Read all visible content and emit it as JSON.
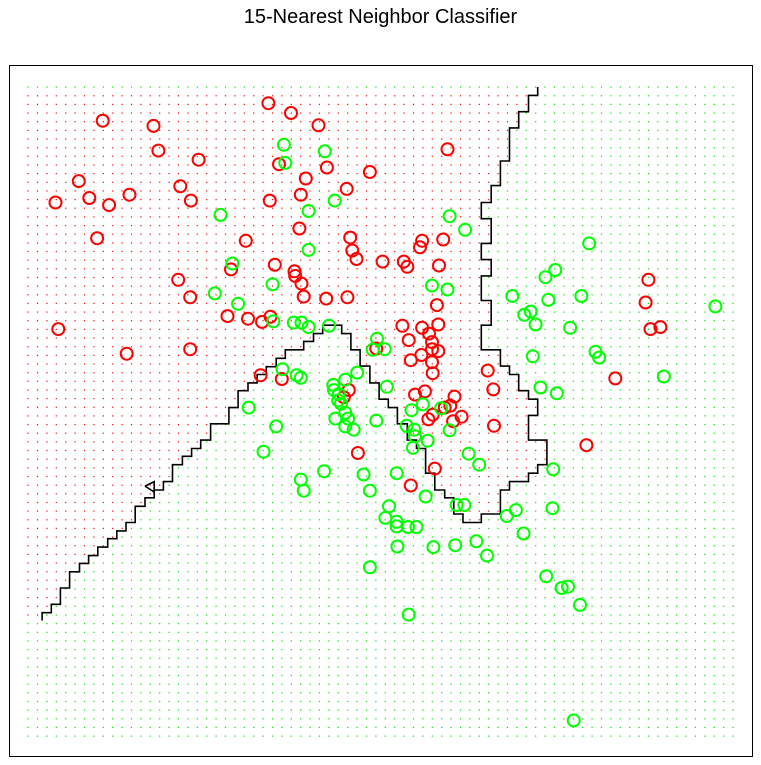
{
  "title": "15-Nearest Neighbor Classifier",
  "colors": {
    "class_red": "#ff0000",
    "class_green": "#00ff00",
    "grid_red": "#ff0000",
    "grid_green": "#00dd00",
    "boundary": "#000000"
  },
  "chart_data": {
    "type": "scatter",
    "title": "15-Nearest Neighbor Classifier",
    "xlabel": "",
    "ylabel": "",
    "xlim": [
      0,
      100
    ],
    "ylim": [
      0,
      100
    ],
    "grid_points": "on",
    "legend": "none",
    "series": [
      {
        "color": "#ff0000",
        "points": [
          [
            34.1,
            97.5
          ],
          [
            37.3,
            96
          ],
          [
            10.6,
            94.8
          ],
          [
            17.8,
            94
          ],
          [
            41.2,
            94.1
          ],
          [
            18.5,
            90.2
          ],
          [
            24.2,
            88.8
          ],
          [
            59.5,
            90.4
          ],
          [
            35.6,
            88.1
          ],
          [
            42.4,
            87.6
          ],
          [
            48.5,
            86.9
          ],
          [
            7.2,
            85.5
          ],
          [
            21.6,
            84.7
          ],
          [
            39.4,
            85.9
          ],
          [
            8.7,
            82.9
          ],
          [
            14.4,
            83.4
          ],
          [
            38.7,
            83.4
          ],
          [
            45.2,
            84.3
          ],
          [
            23.1,
            82.5
          ],
          [
            34.3,
            82.5
          ],
          [
            3.9,
            82.2
          ],
          [
            11.5,
            81.8
          ],
          [
            38.5,
            78.2
          ],
          [
            9.8,
            76.7
          ],
          [
            30.9,
            76.3
          ],
          [
            45.7,
            76.8
          ],
          [
            55.9,
            76.3
          ],
          [
            58.9,
            76.5
          ],
          [
            46,
            74.8
          ],
          [
            55.6,
            75.3
          ],
          [
            46.6,
            73.5
          ],
          [
            50.3,
            73.1
          ],
          [
            53.3,
            73.1
          ],
          [
            35,
            72.6
          ],
          [
            53.8,
            72.3
          ],
          [
            28.8,
            71.9
          ],
          [
            37.8,
            71.6
          ],
          [
            58.3,
            72.5
          ],
          [
            37.9,
            70.9
          ],
          [
            21.3,
            70.3
          ],
          [
            38.8,
            69.7
          ],
          [
            88,
            70.3
          ],
          [
            39.1,
            67.7
          ],
          [
            23,
            67.6
          ],
          [
            42.3,
            67.4
          ],
          [
            45.3,
            67.6
          ],
          [
            87.6,
            66.8
          ],
          [
            58,
            66.4
          ],
          [
            28.3,
            64.7
          ],
          [
            31.2,
            64.3
          ],
          [
            34.4,
            64.6
          ],
          [
            33.2,
            63.8
          ],
          [
            4.3,
            62.7
          ],
          [
            53.1,
            63.2
          ],
          [
            55.9,
            62.9
          ],
          [
            58.2,
            63.4
          ],
          [
            56.9,
            62
          ],
          [
            89.7,
            63
          ],
          [
            88.3,
            62.7
          ],
          [
            54,
            61
          ],
          [
            57.3,
            60.7
          ],
          [
            57.3,
            59.6
          ],
          [
            23,
            59.6
          ],
          [
            58.2,
            59.3
          ],
          [
            49.4,
            59.7
          ],
          [
            14,
            58.9
          ],
          [
            55.8,
            58.7
          ],
          [
            54.3,
            57.9
          ],
          [
            57.3,
            57.6
          ],
          [
            57.4,
            55.9
          ],
          [
            65.2,
            56.3
          ],
          [
            83.3,
            55.1
          ],
          [
            33,
            55.6
          ],
          [
            36,
            55
          ],
          [
            45.5,
            53.3
          ],
          [
            56.3,
            53.1
          ],
          [
            54.9,
            52.6
          ],
          [
            66,
            53.4
          ],
          [
            44.8,
            52.2
          ],
          [
            60.5,
            52.3
          ],
          [
            59.9,
            50.9
          ],
          [
            59.1,
            50.6
          ],
          [
            57.4,
            49.5
          ],
          [
            61.5,
            49.2
          ],
          [
            56.8,
            48.8
          ],
          [
            60.3,
            48.5
          ],
          [
            66.1,
            47.8
          ],
          [
            79.2,
            44.8
          ],
          [
            46.8,
            43.6
          ],
          [
            57.7,
            41.2
          ],
          [
            54.3,
            38.6
          ]
        ]
      },
      {
        "color": "#00ff00",
        "points": [
          [
            36.3,
            91.1
          ],
          [
            42.1,
            90.1
          ],
          [
            36.5,
            88.3
          ],
          [
            43.5,
            82.5
          ],
          [
            39.8,
            80.9
          ],
          [
            27.3,
            80.3
          ],
          [
            59.8,
            80.1
          ],
          [
            62,
            78
          ],
          [
            79.6,
            75.9
          ],
          [
            39.8,
            74.9
          ],
          [
            29,
            72.8
          ],
          [
            74.8,
            71.8
          ],
          [
            73.4,
            70.7
          ],
          [
            34.7,
            69.6
          ],
          [
            57.3,
            69.4
          ],
          [
            59.5,
            68.8
          ],
          [
            26.5,
            68.2
          ],
          [
            68.7,
            67.8
          ],
          [
            78.5,
            67.8
          ],
          [
            73.8,
            67.2
          ],
          [
            29.8,
            66.6
          ],
          [
            97.5,
            66.2
          ],
          [
            71.3,
            65.4
          ],
          [
            70.4,
            64.9
          ],
          [
            34.8,
            63.9
          ],
          [
            37.7,
            63.7
          ],
          [
            38.8,
            63.7
          ],
          [
            72,
            63.4
          ],
          [
            39.8,
            63
          ],
          [
            42.7,
            63.2
          ],
          [
            76.9,
            62.9
          ],
          [
            49.5,
            61.2
          ],
          [
            50.6,
            59.6
          ],
          [
            48.9,
            59.5
          ],
          [
            80.5,
            59.2
          ],
          [
            81,
            58.3
          ],
          [
            71.6,
            58.5
          ],
          [
            36.1,
            56.5
          ],
          [
            38.1,
            55.6
          ],
          [
            38.7,
            55.2
          ],
          [
            46.7,
            56
          ],
          [
            90.2,
            55.4
          ],
          [
            45,
            54.9
          ],
          [
            43.3,
            54.1
          ],
          [
            50.9,
            53.8
          ],
          [
            43.4,
            53.3
          ],
          [
            44.1,
            52.7
          ],
          [
            72.7,
            53.7
          ],
          [
            75,
            52.8
          ],
          [
            44,
            51.7
          ],
          [
            44.4,
            51.2
          ],
          [
            56,
            51.1
          ],
          [
            31.3,
            50.6
          ],
          [
            58.6,
            50.5
          ],
          [
            54.4,
            50.2
          ],
          [
            45,
            49.8
          ],
          [
            43.6,
            48.9
          ],
          [
            45.4,
            48.9
          ],
          [
            49.4,
            48.6
          ],
          [
            35.2,
            47.7
          ],
          [
            45,
            47.7
          ],
          [
            53.7,
            47.8
          ],
          [
            46.2,
            47.2
          ],
          [
            54.8,
            47.2
          ],
          [
            59.8,
            47.1
          ],
          [
            54.9,
            46.2
          ],
          [
            56.7,
            45.5
          ],
          [
            54.6,
            44.4
          ],
          [
            33.4,
            43.8
          ],
          [
            62.5,
            43.5
          ],
          [
            64,
            41.8
          ],
          [
            74.5,
            41.1
          ],
          [
            42,
            40.8
          ],
          [
            52.3,
            40.5
          ],
          [
            47.6,
            40.3
          ],
          [
            38.7,
            39.5
          ],
          [
            39.1,
            37.8
          ],
          [
            48.5,
            37.8
          ],
          [
            56.4,
            36.9
          ],
          [
            51.2,
            35.4
          ],
          [
            50.7,
            33.6
          ],
          [
            60.8,
            35.6
          ],
          [
            61.9,
            35.6
          ],
          [
            69.2,
            34.8
          ],
          [
            74.4,
            35.1
          ],
          [
            67.9,
            33.9
          ],
          [
            52.3,
            33
          ],
          [
            52.3,
            32.3
          ],
          [
            53.9,
            32.2
          ],
          [
            55.1,
            32.2
          ],
          [
            70.3,
            31.2
          ],
          [
            63.6,
            30
          ],
          [
            60.6,
            29.4
          ],
          [
            52.4,
            29.2
          ],
          [
            57.5,
            29.1
          ],
          [
            65.1,
            27.8
          ],
          [
            48.5,
            26
          ],
          [
            73.5,
            24.6
          ],
          [
            76.6,
            23
          ],
          [
            75.7,
            22.8
          ],
          [
            78.3,
            20.2
          ],
          [
            54,
            18.7
          ],
          [
            77.4,
            2.4
          ]
        ]
      }
    ],
    "decision_boundary": [
      [
        72.3,
        100
      ],
      [
        72.3,
        98.7
      ],
      [
        71,
        98.7
      ],
      [
        71,
        96.2
      ],
      [
        69.6,
        96.2
      ],
      [
        69.6,
        93.7
      ],
      [
        68.3,
        93.7
      ],
      [
        68.3,
        88.6
      ],
      [
        67,
        88.6
      ],
      [
        67,
        84.8
      ],
      [
        65.7,
        84.8
      ],
      [
        65.7,
        82.2
      ],
      [
        64.3,
        82.2
      ],
      [
        64.3,
        79.7
      ],
      [
        65.7,
        79.7
      ],
      [
        65.7,
        75.9
      ],
      [
        64.3,
        75.9
      ],
      [
        64.3,
        73.4
      ],
      [
        65.7,
        73.4
      ],
      [
        65.7,
        70.9
      ],
      [
        64.3,
        70.9
      ],
      [
        64.3,
        67.1
      ],
      [
        65.7,
        67.1
      ],
      [
        65.7,
        63.3
      ],
      [
        64.3,
        63.3
      ],
      [
        64.3,
        59.5
      ],
      [
        67,
        59.5
      ],
      [
        67,
        57
      ],
      [
        68.3,
        57
      ],
      [
        68.3,
        55.7
      ],
      [
        69.6,
        55.7
      ],
      [
        69.6,
        53.2
      ],
      [
        71,
        53.2
      ],
      [
        71,
        51.9
      ],
      [
        72.3,
        51.9
      ],
      [
        72.3,
        49.4
      ],
      [
        71,
        49.4
      ],
      [
        71,
        45.6
      ],
      [
        73.6,
        45.6
      ],
      [
        73.6,
        41.8
      ],
      [
        72.3,
        41.8
      ],
      [
        72.3,
        40.5
      ],
      [
        71,
        40.5
      ],
      [
        71,
        39.2
      ],
      [
        68.3,
        39.2
      ],
      [
        68.3,
        37.9
      ],
      [
        67,
        37.9
      ],
      [
        67,
        34.2
      ],
      [
        64.3,
        34.2
      ],
      [
        64.3,
        32.9
      ],
      [
        61.7,
        32.9
      ],
      [
        61.7,
        34.2
      ],
      [
        60.4,
        34.2
      ],
      [
        60.4,
        36.7
      ],
      [
        59.1,
        36.7
      ],
      [
        59.1,
        37.9
      ],
      [
        57.7,
        37.9
      ],
      [
        57.7,
        40.5
      ],
      [
        56.4,
        40.5
      ],
      [
        56.4,
        44.3
      ],
      [
        55.1,
        44.3
      ],
      [
        55.1,
        45.6
      ],
      [
        53.8,
        45.6
      ],
      [
        53.8,
        48.1
      ],
      [
        52.4,
        48.1
      ],
      [
        52.4,
        50.6
      ],
      [
        51.1,
        50.6
      ],
      [
        51.1,
        51.9
      ],
      [
        49.8,
        51.9
      ],
      [
        49.8,
        54.4
      ],
      [
        48.5,
        54.4
      ],
      [
        48.5,
        57
      ],
      [
        47.1,
        57
      ],
      [
        47.1,
        59.5
      ],
      [
        45.8,
        59.5
      ],
      [
        45.8,
        62
      ],
      [
        44.5,
        62
      ],
      [
        44.5,
        63.3
      ],
      [
        41.8,
        63.3
      ],
      [
        41.8,
        62
      ],
      [
        40.5,
        62
      ],
      [
        40.5,
        60.8
      ],
      [
        39.1,
        60.8
      ],
      [
        39.1,
        59.5
      ],
      [
        36.5,
        59.5
      ],
      [
        36.5,
        58.2
      ],
      [
        35.2,
        58.2
      ],
      [
        35.2,
        56.9
      ],
      [
        33.8,
        56.9
      ],
      [
        33.8,
        55.7
      ],
      [
        32.5,
        55.7
      ],
      [
        32.5,
        54.4
      ],
      [
        31.2,
        54.4
      ],
      [
        31.2,
        53.2
      ],
      [
        29.8,
        53.2
      ],
      [
        29.8,
        50.6
      ],
      [
        28.5,
        50.6
      ],
      [
        28.5,
        48.1
      ],
      [
        25.9,
        48.1
      ],
      [
        25.9,
        45.6
      ],
      [
        24.5,
        45.6
      ],
      [
        24.5,
        44.3
      ],
      [
        23.2,
        44.3
      ],
      [
        23.2,
        43.1
      ],
      [
        21.9,
        43.1
      ],
      [
        21.9,
        41.8
      ],
      [
        20.5,
        41.8
      ],
      [
        20.5,
        39.2
      ],
      [
        19.2,
        39.2
      ],
      [
        19.2,
        37.9
      ],
      [
        17.9,
        37.9
      ],
      [
        17.9,
        36.7
      ],
      [
        16.6,
        36.7
      ],
      [
        16.6,
        35.4
      ],
      [
        15.2,
        35.4
      ],
      [
        15.2,
        32.9
      ],
      [
        13.9,
        32.9
      ],
      [
        13.9,
        31.6
      ],
      [
        12.6,
        31.6
      ],
      [
        12.6,
        30.4
      ],
      [
        11.3,
        30.4
      ],
      [
        11.3,
        29.1
      ],
      [
        9.9,
        29.1
      ],
      [
        9.9,
        27.8
      ],
      [
        8.6,
        27.8
      ],
      [
        8.6,
        26.6
      ],
      [
        7.3,
        26.6
      ],
      [
        7.3,
        25.3
      ],
      [
        5.9,
        25.3
      ],
      [
        5.9,
        22.8
      ],
      [
        4.6,
        22.8
      ],
      [
        4.6,
        20.3
      ],
      [
        3.3,
        20.3
      ],
      [
        3.3,
        19
      ],
      [
        2,
        19
      ],
      [
        2,
        17.8
      ]
    ],
    "boundary_island": [
      [
        16.6,
        38.5
      ],
      [
        17.9,
        37.6
      ],
      [
        17.9,
        39.2
      ],
      [
        16.6,
        38.5
      ]
    ]
  }
}
